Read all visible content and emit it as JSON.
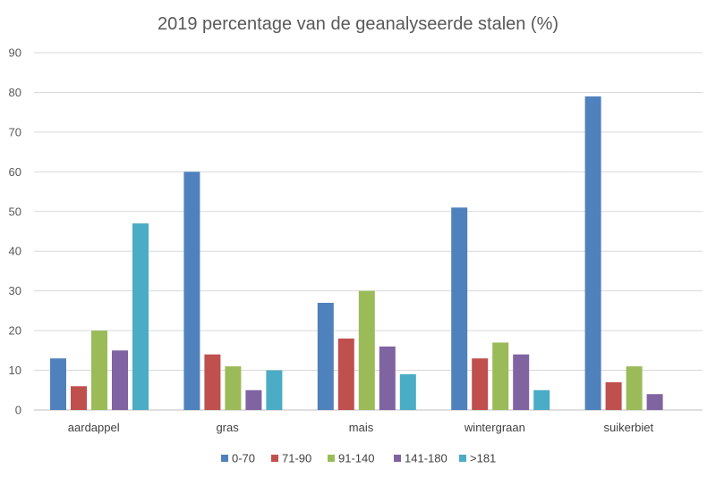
{
  "chart_data": {
    "type": "bar",
    "title": "2019 percentage van de geanalyseerde stalen (%)",
    "xlabel": "",
    "ylabel": "",
    "ylim": [
      0,
      90
    ],
    "yticks": [
      0,
      10,
      20,
      30,
      40,
      50,
      60,
      70,
      80,
      90
    ],
    "grid": true,
    "legend_position": "bottom",
    "categories": [
      "aardappel",
      "gras",
      "mais",
      "wintergraan",
      "suikerbiet"
    ],
    "series": [
      {
        "name": "0-70",
        "color": "#4f81bd",
        "values": [
          13,
          60,
          27,
          51,
          79
        ]
      },
      {
        "name": "71-90",
        "color": "#c0504d",
        "values": [
          6,
          14,
          18,
          13,
          7
        ]
      },
      {
        "name": "91-140",
        "color": "#9bbb59",
        "values": [
          20,
          11,
          30,
          17,
          11
        ]
      },
      {
        "name": "141-180",
        "color": "#8064a2",
        "values": [
          15,
          5,
          16,
          14,
          4
        ]
      },
      {
        "name": ">181",
        "color": "#4bacc6",
        "values": [
          47,
          10,
          9,
          5,
          null
        ]
      }
    ]
  }
}
